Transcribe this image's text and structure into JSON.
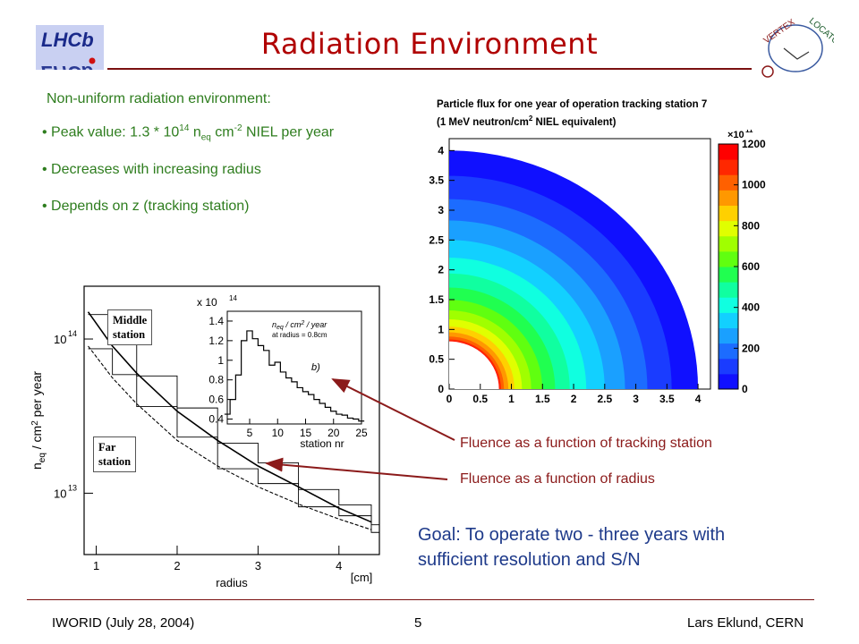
{
  "slide": {
    "title": "Radiation Environment",
    "logo_left": "LHCb",
    "logo_right": "VERTEX LOCATOR",
    "intro": "Non-uniform radiation environment:",
    "bullets": [
      {
        "prefix": "• Peak value: 1.3 * 10",
        "sup1": "14",
        "mid1": " n",
        "sub1": "eq",
        "mid2": " cm",
        "sup2": "-2",
        "suffix": " NIEL per year"
      },
      {
        "text": "• Decreases with increasing radius"
      },
      {
        "text": "• Depends on z (tracking station)"
      }
    ],
    "flux_caption_1": "Particle flux for one year of operation tracking station 7",
    "flux_caption_2a": "(1 MeV neutron/cm",
    "flux_caption_2sup": "2",
    "flux_caption_2b": " NIEL equivalent)",
    "annotation_station": "Fluence as a function of tracking station",
    "annotation_radius": "Fluence as a function of radius",
    "goal_line1": "Goal: To operate two - three years with",
    "goal_line2": "sufficient resolution and S/N",
    "footer_left": "IWORID (July 28, 2004)",
    "footer_center": "5",
    "footer_right": "Lars Eklund, CERN",
    "colors": {
      "title": "#b00000",
      "green_text": "#2e7d1e",
      "annotation": "#8b1a1a",
      "goal": "#1e3a8a"
    }
  },
  "chart_data": [
    {
      "type": "heatmap",
      "title": "",
      "xlabel": "",
      "ylabel": "",
      "x_ticks": [
        "0",
        "0.5",
        "1",
        "1.5",
        "2",
        "2.5",
        "3",
        "3.5",
        "4"
      ],
      "y_ticks": [
        "0",
        "0.5",
        "1",
        "1.5",
        "2",
        "2.5",
        "3",
        "3.5",
        "4"
      ],
      "xlim": [
        0,
        4.2
      ],
      "ylim": [
        0,
        4.2
      ],
      "inner_radius": 0.8,
      "outer_radius": 4.0,
      "colorbar_exponent": "×10",
      "colorbar_exponent_sup": "11",
      "colorbar_ticks": [
        "0",
        "200",
        "400",
        "600",
        "800",
        "1000",
        "1200"
      ],
      "colorbar_range": [
        0,
        1200
      ],
      "colorbar_colors": [
        "#1010ff",
        "#1a3cff",
        "#1c6cff",
        "#1aa0ff",
        "#12d0ff",
        "#10ffe0",
        "#10ffa0",
        "#20ff50",
        "#60ff10",
        "#a0ff00",
        "#e0ff00",
        "#ffd000",
        "#ff9800",
        "#ff6000",
        "#ff2800",
        "#ff0000"
      ]
    },
    {
      "type": "line",
      "xlabel": "radius",
      "xunit": "[cm]",
      "ylabel": "n_eq / cm^2 per year",
      "ylabel_parts": {
        "n": "n",
        "sub": "eq",
        "mid": " / cm",
        "sup": "2",
        "end": " per year"
      },
      "x_ticks": [
        "1",
        "2",
        "3",
        "4"
      ],
      "y_ticks": [
        {
          "base": "10",
          "exp": "13"
        },
        {
          "base": "10",
          "exp": "14"
        }
      ],
      "xlim": [
        0.85,
        4.5
      ],
      "log_y": true,
      "labels": {
        "middle_1": "Middle",
        "middle_2": "station",
        "far_1": "Far",
        "far_2": "station"
      },
      "series": [
        {
          "name": "",
          "x": [
            0.9,
            1.2,
            1.5,
            2.0,
            2.5,
            3.0,
            3.5,
            4.0,
            4.4
          ],
          "values": [
            150000000000000.0,
            90000000000000.0,
            60000000000000.0,
            34000000000000.0,
            22000000000000.0,
            15000000000000.0,
            11000000000000.0,
            8000000000000.0,
            6500000000000.0
          ]
        },
        {
          "name": "",
          "x": [
            0.9,
            1.2,
            1.5,
            2.0,
            2.5,
            3.0,
            3.5,
            4.0,
            4.4
          ],
          "values": [
            90000000000000.0,
            56000000000000.0,
            38000000000000.0,
            22000000000000.0,
            15000000000000.0,
            11000000000000.0,
            8500000000000.0,
            6800000000000.0,
            5800000000000.0
          ]
        }
      ]
    },
    {
      "type": "bar",
      "title": "b)",
      "legend_1": "n_eq / cm^2 / year",
      "legend_parts": {
        "n": "n",
        "sub": "eq",
        "mid": " / cm",
        "sup": "2",
        "end": " / year"
      },
      "legend_2": "at radius = 0.8cm",
      "xlabel": "station nr",
      "y_exponent": "x 10",
      "y_exponent_sup": "14",
      "x_ticks": [
        "5",
        "10",
        "15",
        "20",
        "25"
      ],
      "y_ticks": [
        "0.4",
        "0.6",
        "0.8",
        "1",
        "1.2",
        "1.4"
      ],
      "xlim": [
        1,
        25
      ],
      "ylim": [
        0.35,
        1.5
      ],
      "categories": [
        1,
        2,
        3,
        4,
        5,
        6,
        7,
        8,
        9,
        10,
        11,
        12,
        13,
        14,
        15,
        16,
        17,
        18,
        19,
        20,
        21,
        22,
        23,
        24,
        25
      ],
      "values": [
        0.45,
        0.6,
        0.85,
        1.2,
        1.3,
        1.22,
        1.15,
        1.1,
        0.95,
        0.98,
        0.88,
        0.82,
        0.78,
        0.72,
        0.68,
        0.65,
        0.6,
        0.56,
        0.52,
        0.48,
        0.45,
        0.44,
        0.41,
        0.4,
        0.38
      ]
    }
  ]
}
